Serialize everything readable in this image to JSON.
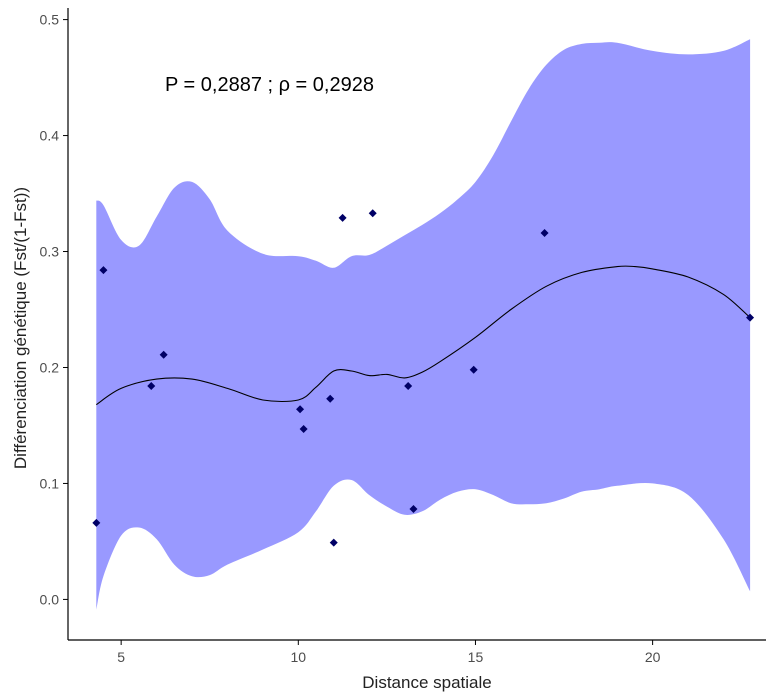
{
  "chart_data": {
    "type": "scatter",
    "title": "",
    "xlabel": "Distance spatiale",
    "ylabel": "Différenciation génétique (Fst/(1-Fst))",
    "xlim": [
      3.5,
      23.2
    ],
    "ylim": [
      -0.035,
      0.51
    ],
    "xticks": [
      5,
      10,
      15,
      20
    ],
    "xtick_labels": [
      "5",
      "10",
      "15",
      "20"
    ],
    "yticks": [
      0.0,
      0.1,
      0.2,
      0.3,
      0.4,
      0.5
    ],
    "ytick_labels": [
      "0.0",
      "0.1",
      "0.2",
      "0.3",
      "0.4",
      "0.5"
    ],
    "grid": false,
    "annotation": "P = 0,2887 ;  ρ = 0,2928",
    "colors": {
      "band": "#9999ff",
      "points": "#000066",
      "line": "#000000"
    },
    "points": {
      "x": [
        4.3,
        4.5,
        5.85,
        6.2,
        10.05,
        10.15,
        10.9,
        11.0,
        11.25,
        12.1,
        13.1,
        13.25,
        14.95,
        16.95,
        22.75
      ],
      "y": [
        0.066,
        0.284,
        0.184,
        0.211,
        0.164,
        0.147,
        0.173,
        0.049,
        0.329,
        0.333,
        0.184,
        0.078,
        0.198,
        0.316,
        0.243
      ]
    },
    "smooth_line": {
      "x": [
        4.3,
        5.0,
        6.0,
        7.0,
        8.0,
        9.0,
        10.0,
        10.5,
        11.0,
        11.5,
        12.0,
        12.5,
        13.0,
        13.5,
        14.0,
        15.0,
        16.0,
        17.0,
        18.0,
        19.0,
        19.5,
        20.0,
        21.0,
        22.0,
        22.75
      ],
      "y": [
        0.168,
        0.182,
        0.19,
        0.19,
        0.182,
        0.172,
        0.172,
        0.183,
        0.197,
        0.197,
        0.193,
        0.194,
        0.191,
        0.196,
        0.205,
        0.226,
        0.25,
        0.27,
        0.282,
        0.287,
        0.287,
        0.285,
        0.278,
        0.263,
        0.243
      ]
    },
    "confidence_band": {
      "x": [
        4.3,
        4.5,
        5.0,
        5.5,
        6.0,
        6.5,
        7.0,
        7.5,
        8.0,
        9.0,
        10.0,
        10.5,
        11.0,
        11.5,
        12.0,
        12.5,
        13.0,
        13.5,
        14.0,
        14.5,
        15.0,
        15.5,
        16.0,
        16.5,
        17.0,
        17.5,
        18.0,
        18.5,
        19.0,
        20.0,
        21.0,
        22.0,
        22.75
      ],
      "upper": [
        0.344,
        0.34,
        0.31,
        0.305,
        0.33,
        0.355,
        0.36,
        0.345,
        0.318,
        0.298,
        0.296,
        0.292,
        0.286,
        0.296,
        0.297,
        0.305,
        0.314,
        0.323,
        0.333,
        0.345,
        0.36,
        0.383,
        0.412,
        0.44,
        0.461,
        0.474,
        0.479,
        0.48,
        0.48,
        0.473,
        0.47,
        0.473,
        0.483
      ],
      "lower": [
        -0.009,
        0.02,
        0.055,
        0.062,
        0.052,
        0.03,
        0.02,
        0.021,
        0.03,
        0.043,
        0.058,
        0.076,
        0.098,
        0.103,
        0.09,
        0.08,
        0.073,
        0.076,
        0.086,
        0.093,
        0.095,
        0.09,
        0.083,
        0.082,
        0.083,
        0.087,
        0.093,
        0.095,
        0.098,
        0.1,
        0.09,
        0.052,
        0.007
      ]
    }
  }
}
